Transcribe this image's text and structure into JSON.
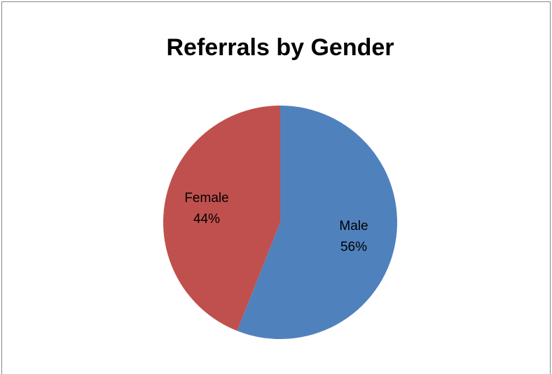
{
  "chart_data": {
    "type": "pie",
    "title": "Referrals by Gender",
    "categories": [
      "Male",
      "Female"
    ],
    "values": [
      56,
      44
    ],
    "value_labels": [
      "56%",
      "44%"
    ],
    "colors": [
      "#4f81bd",
      "#c0504d"
    ]
  }
}
